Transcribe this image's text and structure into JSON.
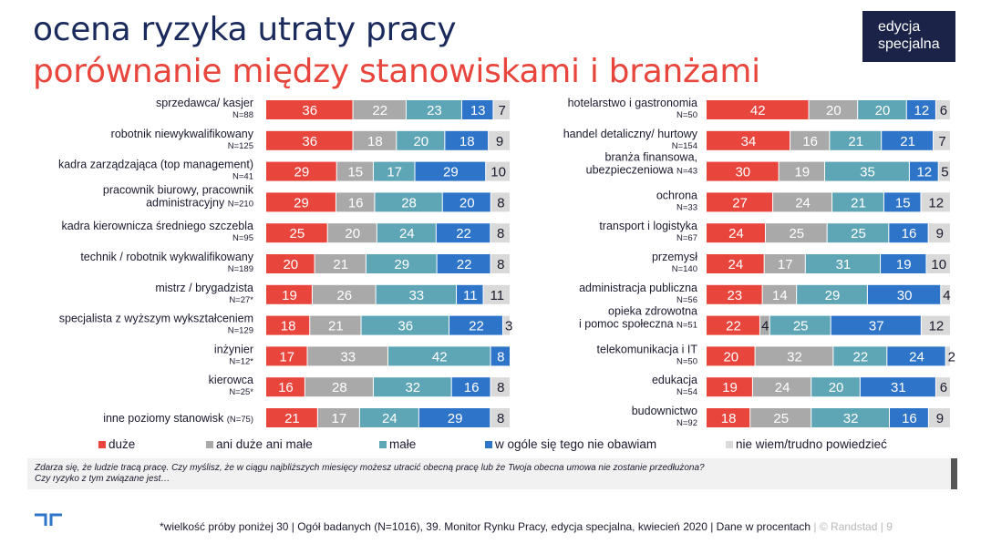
{
  "header": {
    "title": "ocena ryzyka utraty pracy",
    "subtitle": "porównanie między stanowiskami i branżami",
    "edition": "edycja specjalna"
  },
  "colors": {
    "duze": "#e8453c",
    "ani": "#a9a9a9",
    "male": "#5ea6b6",
    "wogole": "#2e74c9",
    "niewiem": "#d9d9d9",
    "title_dark": "#1b2a5c",
    "title_red": "#e8453c"
  },
  "chart_data": [
    {
      "type": "bar",
      "orientation": "horizontal",
      "stacked": true,
      "series_names": [
        "duże",
        "ani duże ani małe",
        "małe",
        "w ogóle się tego nie obawiam",
        "nie wiem/trudno powiedzieć"
      ],
      "categories": [
        {
          "label": "sprzedawca/ kasjer",
          "n": "N=88",
          "values": [
            36,
            22,
            23,
            13,
            7
          ]
        },
        {
          "label": "robotnik niewykwalifikowany",
          "n": "N=125",
          "values": [
            36,
            18,
            20,
            18,
            9
          ]
        },
        {
          "label": "kadra zarządzająca (top management)",
          "n": "N=41",
          "values": [
            29,
            15,
            17,
            29,
            10
          ]
        },
        {
          "label": "pracownik biurowy, pracownik|administracyjny",
          "n": "N=210",
          "values": [
            29,
            16,
            28,
            20,
            8
          ]
        },
        {
          "label": "kadra kierownicza średniego szczebla",
          "n": "N=95",
          "values": [
            25,
            20,
            24,
            22,
            8
          ]
        },
        {
          "label": "technik / robotnik wykwalifikowany",
          "n": "N=189",
          "values": [
            20,
            21,
            29,
            22,
            8
          ]
        },
        {
          "label": "mistrz / brygadzista",
          "n": "N=27*",
          "values": [
            19,
            26,
            33,
            11,
            11
          ]
        },
        {
          "label": "specjalista z wyższym wykształceniem",
          "n": "N=129",
          "values": [
            18,
            21,
            36,
            22,
            3
          ]
        },
        {
          "label": "inżynier",
          "n": "N=12*",
          "values": [
            17,
            33,
            42,
            8,
            0
          ]
        },
        {
          "label": "kierowca",
          "n": "N=25*",
          "values": [
            16,
            28,
            32,
            16,
            8
          ]
        },
        {
          "label": "inne poziomy stanowisk",
          "n": "(N=75)",
          "values": [
            21,
            17,
            24,
            29,
            8
          ]
        }
      ]
    },
    {
      "type": "bar",
      "orientation": "horizontal",
      "stacked": true,
      "series_names": [
        "duże",
        "ani duże ani małe",
        "małe",
        "w ogóle się tego nie obawiam",
        "nie wiem/trudno powiedzieć"
      ],
      "categories": [
        {
          "label": "hotelarstwo i gastronomia",
          "n": "N=50",
          "values": [
            42,
            20,
            20,
            12,
            6
          ]
        },
        {
          "label": "handel detaliczny/ hurtowy",
          "n": "N=154",
          "values": [
            34,
            16,
            21,
            21,
            7
          ]
        },
        {
          "label": "branża finansowa,|ubezpieczeniowa",
          "n": "N=43",
          "values": [
            30,
            19,
            35,
            12,
            5
          ]
        },
        {
          "label": "ochrona",
          "n": "N=33",
          "values": [
            27,
            24,
            21,
            15,
            12
          ]
        },
        {
          "label": "transport i logistyka",
          "n": "N=67",
          "values": [
            24,
            25,
            25,
            16,
            9
          ]
        },
        {
          "label": "przemysł",
          "n": "N=140",
          "values": [
            24,
            17,
            31,
            19,
            10
          ]
        },
        {
          "label": "administracja publiczna",
          "n": "N=56",
          "values": [
            23,
            14,
            29,
            30,
            4
          ]
        },
        {
          "label": "opieka zdrowotna|i pomoc społeczna",
          "n": "N=51",
          "values": [
            22,
            4,
            25,
            37,
            12
          ]
        },
        {
          "label": "telekomunikacja i IT",
          "n": "N=50",
          "values": [
            20,
            32,
            22,
            24,
            2
          ]
        },
        {
          "label": "edukacja",
          "n": "N=54",
          "values": [
            19,
            24,
            20,
            31,
            6
          ]
        },
        {
          "label": "budownictwo",
          "n": "N=92",
          "values": [
            18,
            25,
            32,
            16,
            9
          ]
        }
      ]
    }
  ],
  "legend": {
    "duze": "duże",
    "ani": "ani duże ani małe",
    "male": "małe",
    "wogole": "w ogóle się tego nie obawiam",
    "niewiem": "nie wiem/trudno powiedzieć"
  },
  "question": {
    "line1": "Zdarza się, że ludzie tracą pracę. Czy myślisz, że w ciągu najbliższych miesięcy możesz utracić obecną pracę lub że Twoja obecna umowa nie zostanie przedłużona?",
    "line2": "Czy ryzyko z tym związane jest…"
  },
  "footer": {
    "text": "*wielkość próby poniżej 30 | Ogół badanych (N=1016), 39. Monitor Rynku Pracy, edycja specjalna, kwiecień 2020 | Dane w procentach",
    "brand": " | © Randstad  |   9"
  }
}
